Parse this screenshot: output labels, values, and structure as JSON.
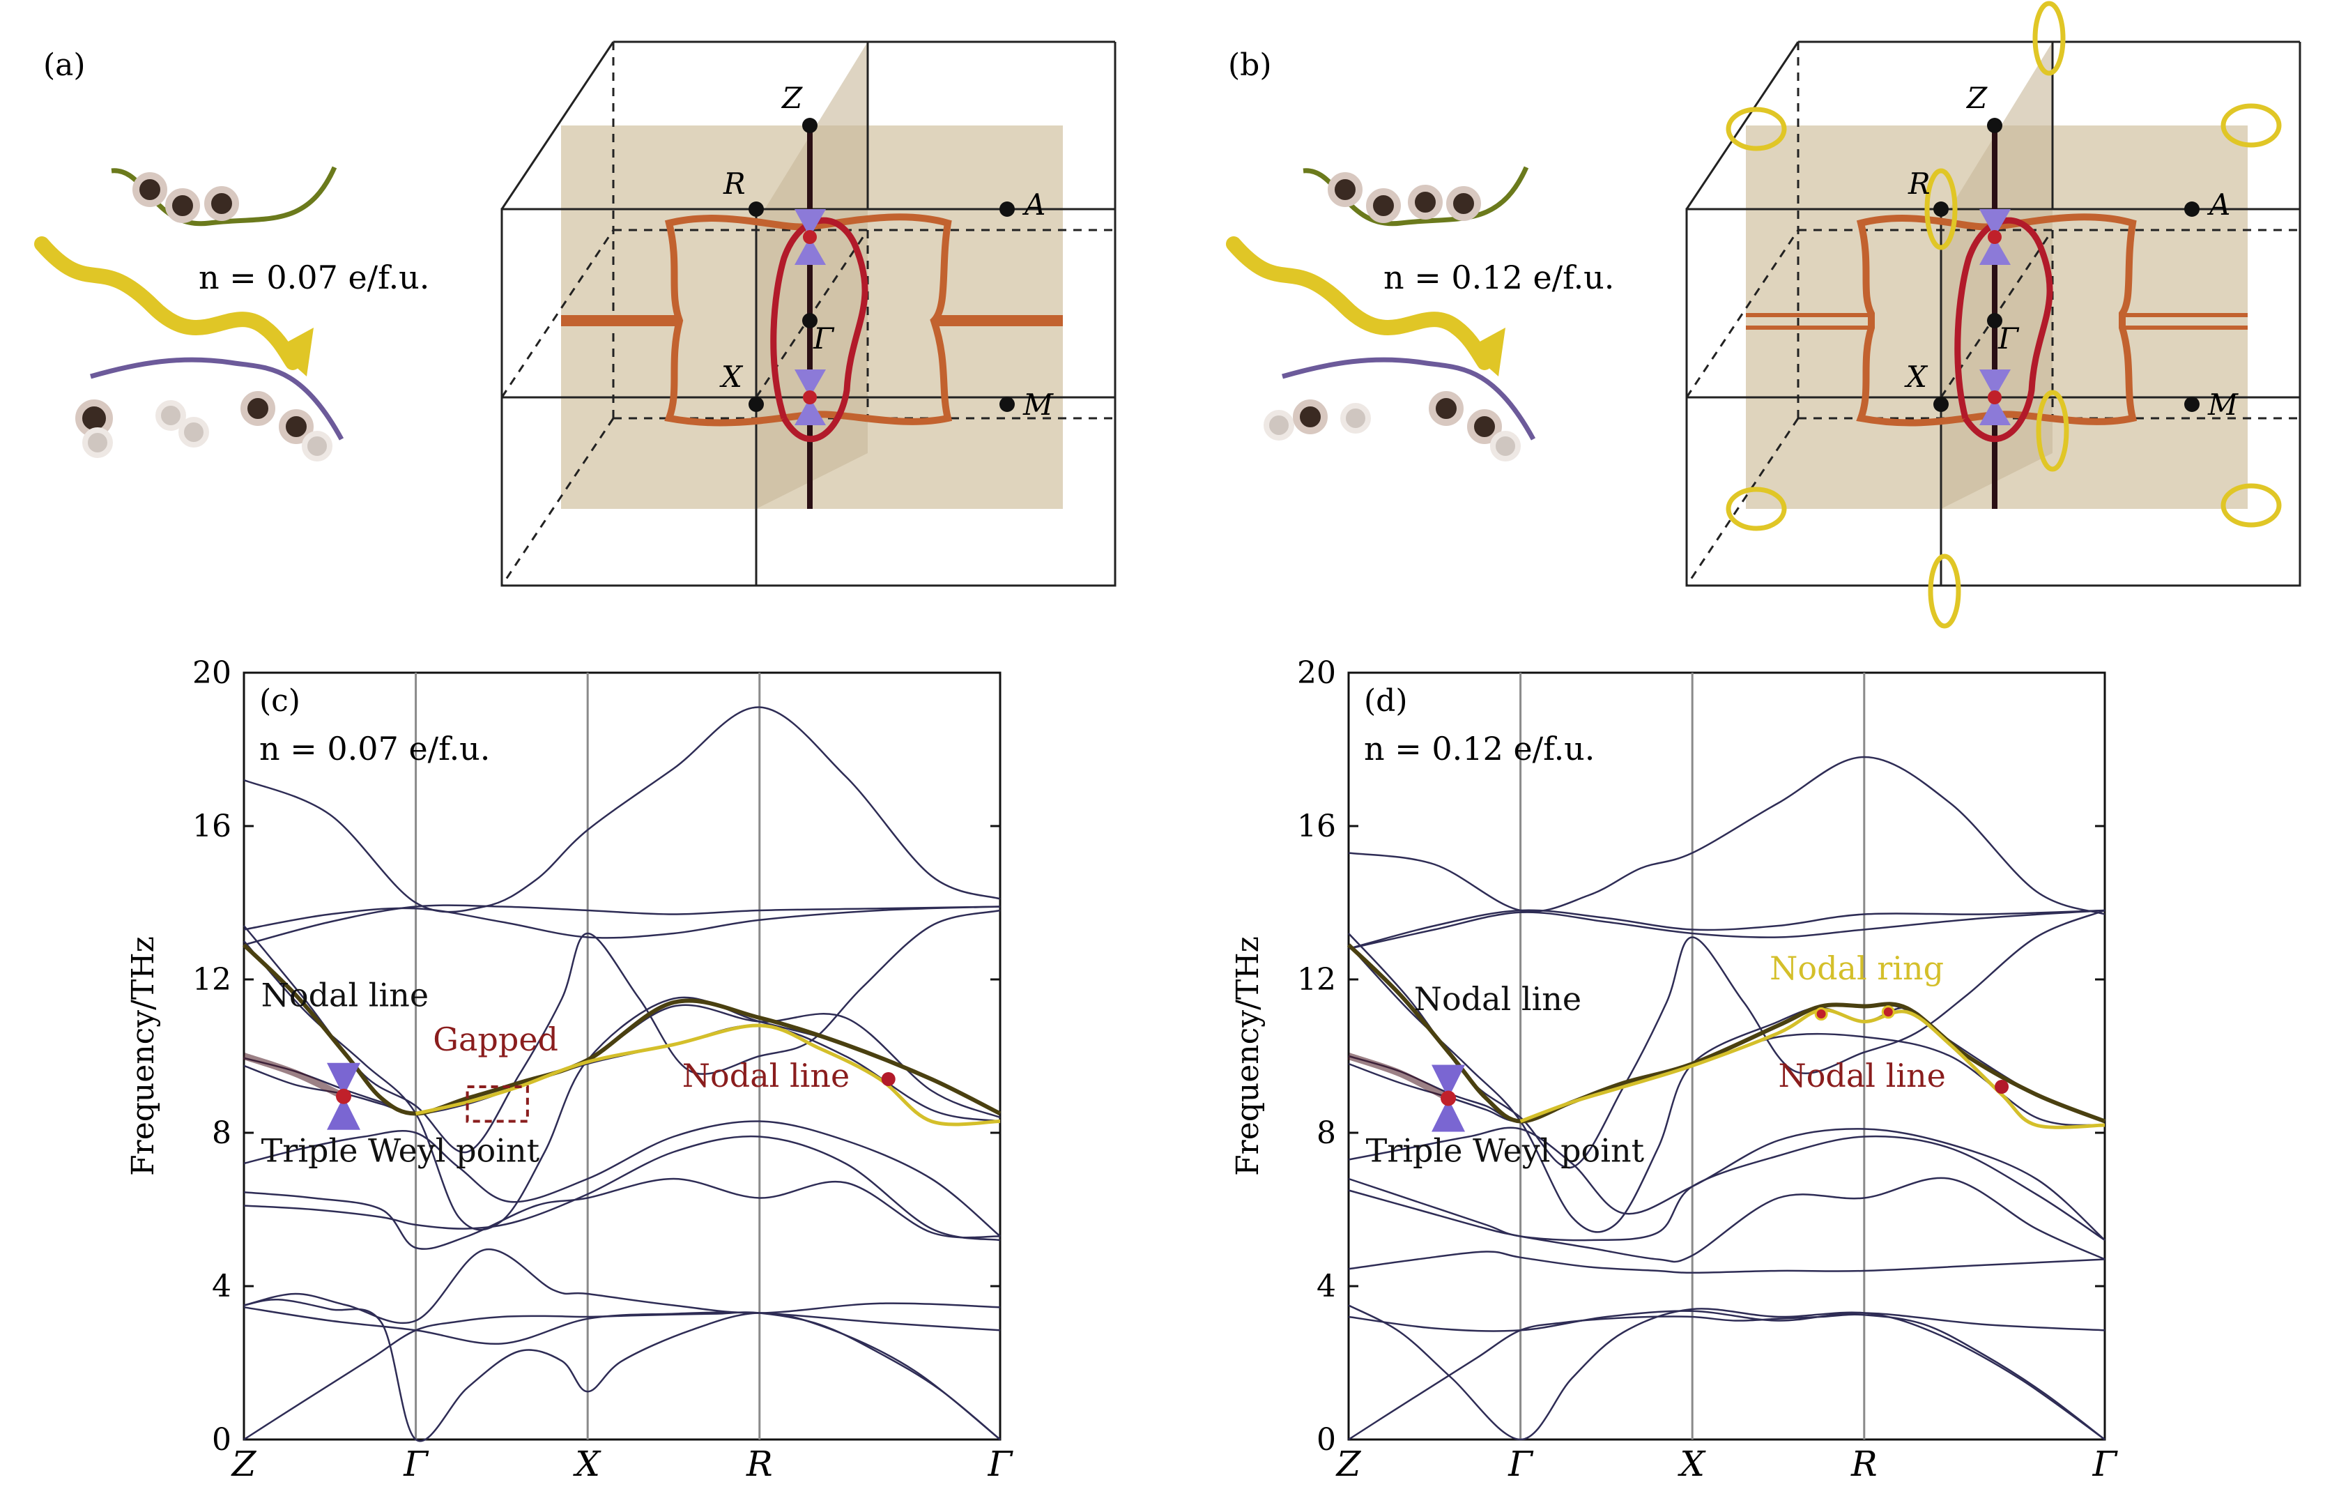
{
  "panels": {
    "a": {
      "label": "(a)",
      "doping": "n = 0.07 e/f.u."
    },
    "b": {
      "label": "(b)",
      "doping": "n = 0.12 e/f.u."
    }
  },
  "bz_labels": {
    "Z": "Z",
    "R": "R",
    "A": "A",
    "Gamma": "Γ",
    "X": "X",
    "M": "M"
  },
  "chart_data": [
    {
      "type": "line",
      "panel_label": "(c)",
      "doping_label": "n = 0.07 e/f.u.",
      "ylabel": "Frequency/THz",
      "xlabel": "",
      "ylim": [
        0,
        20
      ],
      "yticks": [
        0,
        4,
        8,
        12,
        16,
        20
      ],
      "x_ticks": [
        {
          "pos": 0,
          "label": "Z"
        },
        {
          "pos": 1,
          "label": "Γ"
        },
        {
          "pos": 2,
          "label": "X"
        },
        {
          "pos": 3,
          "label": "R"
        },
        {
          "pos": 4.4,
          "label": "Γ"
        }
      ],
      "annotations": {
        "nodal_line_left": "Nodal line",
        "gapped": "Gapped",
        "nodal_line_right": "Nodal line",
        "triple_weyl": "Triple Weyl point"
      },
      "series": [
        {
          "x": [
            0,
            0.25,
            0.5,
            0.75,
            1,
            1.25,
            1.5,
            1.75,
            2,
            2.25,
            2.5,
            2.75,
            3,
            3.35,
            3.7,
            4.05,
            4.4
          ],
          "y": [
            0,
            0.72,
            1.43,
            2.14,
            2.85,
            3.08,
            3.2,
            3.22,
            3.2,
            3.23,
            3.26,
            3.28,
            3.3,
            3.0,
            2.25,
            1.3,
            0
          ]
        },
        {
          "x": [
            0,
            0.5,
            1,
            1.5,
            2,
            2.5,
            3,
            3.7,
            4.4
          ],
          "y": [
            3.45,
            3.1,
            2.85,
            2.5,
            3.15,
            3.28,
            3.3,
            3.05,
            2.85
          ]
        },
        {
          "x": [
            0,
            0.2,
            0.5,
            0.8,
            1,
            1.3,
            1.6,
            1.85,
            2,
            2.2,
            2.6,
            3,
            3.4,
            3.9,
            4.4
          ],
          "y": [
            3.5,
            3.65,
            3.4,
            3.05,
            0,
            1.35,
            2.3,
            2.05,
            1.25,
            2.05,
            2.85,
            3.3,
            2.9,
            1.8,
            0
          ]
        },
        {
          "x": [
            0,
            0.3,
            0.6,
            1,
            1.4,
            1.8,
            2,
            2.5,
            3,
            3.7,
            4.4
          ],
          "y": [
            3.5,
            3.8,
            3.5,
            3.1,
            4.95,
            3.9,
            3.8,
            3.5,
            3.3,
            3.55,
            3.45
          ]
        },
        {
          "x": [
            0,
            0.4,
            0.8,
            1,
            1.3,
            1.6,
            2,
            2.5,
            3,
            3.5,
            4.0,
            4.4
          ],
          "y": [
            6.1,
            6.0,
            5.8,
            5.6,
            5.5,
            5.7,
            6.4,
            7.5,
            7.9,
            7.2,
            5.5,
            5.2
          ]
        },
        {
          "x": [
            0,
            0.4,
            0.8,
            1,
            1.3,
            1.7,
            2,
            2.5,
            3,
            3.5,
            4.0,
            4.4
          ],
          "y": [
            6.45,
            6.3,
            6.0,
            5.0,
            5.3,
            6.1,
            6.3,
            6.8,
            6.3,
            6.7,
            5.4,
            5.3
          ]
        },
        {
          "x": [
            0,
            0.35,
            0.7,
            1,
            1.25,
            1.55,
            2,
            2.5,
            3,
            3.5,
            4.0,
            4.4
          ],
          "y": [
            7.2,
            7.6,
            7.9,
            8.0,
            7.1,
            6.2,
            6.8,
            7.9,
            8.3,
            7.8,
            6.8,
            5.3
          ]
        },
        {
          "x": [
            0,
            0.3,
            0.6,
            0.8,
            1,
            1.3,
            1.6,
            2,
            2.5,
            3,
            3.5,
            4.0,
            4.4
          ],
          "y": [
            9.75,
            9.25,
            9.0,
            8.75,
            8.5,
            8.75,
            9.2,
            9.8,
            10.3,
            10.8,
            10.0,
            8.6,
            8.3
          ]
        },
        {
          "x": [
            0,
            0.3,
            0.6,
            0.8,
            1,
            1.3,
            1.6,
            2,
            2.5,
            3,
            3.5,
            4.0,
            4.4
          ],
          "y": [
            9.95,
            9.6,
            9.1,
            8.8,
            8.5,
            8.9,
            9.3,
            9.9,
            11.3,
            10.9,
            11.0,
            9.1,
            8.4
          ]
        },
        {
          "x": [
            0,
            0.35,
            0.7,
            1,
            1.25,
            1.5,
            1.75,
            2,
            2.5,
            3,
            3.5,
            4.0,
            4.4
          ],
          "y": [
            13.0,
            11.2,
            9.8,
            8.5,
            5.8,
            5.7,
            7.5,
            9.9,
            11.5,
            10.9,
            10.3,
            9.4,
            8.5
          ]
        },
        {
          "x": [
            0,
            0.35,
            0.7,
            1,
            1.3,
            1.6,
            1.85,
            2,
            2.3,
            2.6,
            3,
            3.3,
            3.6,
            4.0,
            4.4
          ],
          "y": [
            13.4,
            11.5,
            9.5,
            8.7,
            7.5,
            9.5,
            11.5,
            13.2,
            11.5,
            9.6,
            10.0,
            10.4,
            11.8,
            13.4,
            13.8
          ]
        },
        {
          "x": [
            0,
            0.5,
            1,
            1.5,
            2,
            2.5,
            3,
            3.7,
            4.4
          ],
          "y": [
            13.3,
            13.7,
            13.85,
            13.5,
            13.1,
            13.2,
            13.55,
            13.8,
            13.9
          ]
        },
        {
          "x": [
            0,
            0.5,
            1,
            1.5,
            2,
            2.5,
            3,
            3.7,
            4.4
          ],
          "y": [
            12.9,
            13.5,
            13.9,
            13.9,
            13.8,
            13.7,
            13.8,
            13.85,
            13.9
          ]
        },
        {
          "x": [
            0,
            0.5,
            1,
            1.4,
            1.7,
            2,
            2.5,
            3,
            3.5,
            4.0,
            4.4
          ],
          "y": [
            17.2,
            16.3,
            14.0,
            13.9,
            14.6,
            15.9,
            17.5,
            19.1,
            17.3,
            14.7,
            14.1
          ]
        }
      ],
      "highlight": {
        "dark_nodal_line": {
          "x": [
            0,
            0.3,
            0.6,
            0.8,
            1,
            1.3,
            1.6,
            2,
            2.5,
            3,
            3.5,
            4.0,
            4.4
          ],
          "y": [
            12.9,
            11.6,
            10.0,
            8.9,
            8.5,
            8.9,
            9.3,
            9.9,
            11.4,
            11.0,
            10.3,
            9.4,
            8.5
          ]
        },
        "yellow_line": {
          "x": [
            1,
            1.3,
            1.6,
            2,
            2.5,
            3,
            3.35,
            3.7,
            4.0,
            4.4
          ],
          "y": [
            8.5,
            8.8,
            9.2,
            9.85,
            10.3,
            10.8,
            10.2,
            9.4,
            8.3,
            8.3
          ]
        },
        "triple_weyl_point": {
          "x": 0.58,
          "y": 8.95
        },
        "nodal_point": {
          "x": 3.75,
          "y": 9.4
        },
        "gapped_box": {
          "x": [
            1.3,
            1.65
          ],
          "y": [
            8.3,
            9.2
          ]
        }
      }
    },
    {
      "type": "line",
      "panel_label": "(d)",
      "doping_label": "n = 0.12 e/f.u.",
      "ylabel": "Frequency/THz",
      "xlabel": "",
      "ylim": [
        0,
        20
      ],
      "yticks": [
        0,
        4,
        8,
        12,
        16,
        20
      ],
      "x_ticks": [
        {
          "pos": 0,
          "label": "Z"
        },
        {
          "pos": 1,
          "label": "Γ"
        },
        {
          "pos": 2,
          "label": "X"
        },
        {
          "pos": 3,
          "label": "R"
        },
        {
          "pos": 4.4,
          "label": "Γ"
        }
      ],
      "annotations": {
        "nodal_ring": "Nodal ring",
        "nodal_line_left": "Nodal line",
        "nodal_line_right": "Nodal line",
        "triple_weyl": "Triple Weyl point"
      },
      "series": [
        {
          "x": [
            0,
            0.25,
            0.5,
            0.75,
            1,
            1.25,
            1.5,
            1.75,
            2,
            2.25,
            2.5,
            2.75,
            3,
            3.35,
            3.7,
            4.05,
            4.4
          ],
          "y": [
            0,
            0.72,
            1.43,
            2.14,
            2.85,
            3.05,
            3.15,
            3.2,
            3.2,
            3.1,
            3.15,
            3.2,
            3.25,
            3.0,
            2.2,
            1.2,
            0
          ]
        },
        {
          "x": [
            0,
            0.5,
            1,
            1.5,
            2,
            2.5,
            3,
            3.7,
            4.4
          ],
          "y": [
            3.2,
            2.9,
            2.85,
            3.2,
            3.35,
            3.1,
            3.3,
            3.0,
            2.85
          ]
        },
        {
          "x": [
            0,
            0.3,
            0.6,
            1,
            1.3,
            1.6,
            2,
            2.5,
            3,
            3.4,
            3.9,
            4.4
          ],
          "y": [
            3.5,
            2.8,
            1.6,
            0,
            1.6,
            2.8,
            3.4,
            3.2,
            3.3,
            2.8,
            1.6,
            0
          ]
        },
        {
          "x": [
            0,
            0.4,
            0.8,
            1,
            1.4,
            1.8,
            2,
            2.5,
            3,
            3.7,
            4.4
          ],
          "y": [
            4.45,
            4.7,
            4.9,
            4.75,
            4.5,
            4.4,
            4.35,
            4.4,
            4.4,
            4.55,
            4.7
          ]
        },
        {
          "x": [
            0,
            0.4,
            0.8,
            1,
            1.4,
            1.8,
            2,
            2.5,
            3,
            3.5,
            4.0,
            4.4
          ],
          "y": [
            6.5,
            6.0,
            5.5,
            5.3,
            5.0,
            4.7,
            4.8,
            6.3,
            6.3,
            6.8,
            5.5,
            4.7
          ]
        },
        {
          "x": [
            0,
            0.4,
            0.8,
            1,
            1.4,
            1.8,
            2,
            2.5,
            3,
            3.5,
            4.0,
            4.4
          ],
          "y": [
            6.8,
            6.2,
            5.6,
            5.3,
            5.2,
            5.4,
            6.6,
            7.4,
            7.9,
            7.6,
            6.4,
            5.2
          ]
        },
        {
          "x": [
            0,
            0.35,
            0.7,
            1,
            1.3,
            1.6,
            2,
            2.5,
            3,
            3.5,
            4.0,
            4.4
          ],
          "y": [
            7.3,
            7.6,
            7.9,
            8.1,
            7.2,
            5.9,
            6.6,
            7.8,
            8.1,
            7.7,
            6.8,
            5.2
          ]
        },
        {
          "x": [
            0,
            0.3,
            0.6,
            0.8,
            1,
            1.3,
            1.6,
            2,
            2.5,
            3,
            3.5,
            4.0,
            4.4
          ],
          "y": [
            9.8,
            9.3,
            8.9,
            8.6,
            8.3,
            8.8,
            9.2,
            9.75,
            10.5,
            10.5,
            10.0,
            8.4,
            8.2
          ]
        },
        {
          "x": [
            0,
            0.3,
            0.6,
            0.8,
            1,
            1.3,
            1.6,
            2,
            2.5,
            2.75,
            3,
            3.25,
            3.5,
            4.0,
            4.4
          ],
          "y": [
            10.0,
            9.6,
            9.0,
            8.7,
            8.3,
            8.8,
            9.3,
            9.8,
            10.8,
            11.25,
            10.9,
            11.25,
            10.4,
            9.0,
            8.3
          ]
        },
        {
          "x": [
            0,
            0.35,
            0.7,
            1,
            1.3,
            1.55,
            1.8,
            2,
            2.5,
            2.75,
            3,
            3.25,
            3.6,
            4.0,
            4.4
          ],
          "y": [
            12.9,
            11.2,
            9.7,
            8.3,
            5.8,
            5.6,
            7.6,
            9.8,
            10.9,
            11.3,
            11.3,
            11.2,
            10.0,
            9.0,
            8.3
          ]
        },
        {
          "x": [
            0,
            0.35,
            0.7,
            1,
            1.3,
            1.6,
            1.85,
            2,
            2.3,
            2.6,
            3,
            3.3,
            3.6,
            4.0,
            4.4
          ],
          "y": [
            13.2,
            11.5,
            9.4,
            8.4,
            7.1,
            9.2,
            11.4,
            13.1,
            11.4,
            9.6,
            10.1,
            10.6,
            11.6,
            13.1,
            13.8
          ]
        },
        {
          "x": [
            0,
            0.5,
            1,
            1.5,
            2,
            2.5,
            3,
            3.7,
            4.4
          ],
          "y": [
            12.8,
            13.3,
            13.75,
            13.5,
            13.2,
            13.1,
            13.3,
            13.6,
            13.8
          ]
        },
        {
          "x": [
            0,
            0.5,
            1,
            1.5,
            2,
            2.5,
            3,
            3.7,
            4.4
          ],
          "y": [
            12.8,
            13.4,
            13.8,
            13.6,
            13.3,
            13.4,
            13.7,
            13.7,
            13.8
          ]
        },
        {
          "x": [
            0,
            0.5,
            1,
            1.4,
            1.7,
            2,
            2.5,
            3,
            3.5,
            4.0,
            4.4
          ],
          "y": [
            15.3,
            15.0,
            13.8,
            14.2,
            14.9,
            15.3,
            16.6,
            17.8,
            16.6,
            14.3,
            13.7
          ]
        }
      ],
      "highlight": {
        "dark_nodal_line": {
          "x": [
            0,
            0.3,
            0.6,
            0.8,
            1,
            1.3,
            1.6,
            2,
            2.5,
            2.75,
            3,
            3.25,
            3.6,
            4.0,
            4.4
          ],
          "y": [
            12.9,
            11.6,
            10.0,
            8.9,
            8.3,
            8.8,
            9.3,
            9.8,
            10.8,
            11.3,
            11.3,
            11.25,
            10.0,
            9.0,
            8.3
          ]
        },
        "yellow_line": {
          "x": [
            1,
            1.3,
            1.6,
            2,
            2.5,
            2.75,
            3,
            3.25,
            3.5,
            3.8,
            4.0,
            4.4
          ],
          "y": [
            8.3,
            8.8,
            9.2,
            9.75,
            10.6,
            11.2,
            10.9,
            11.15,
            10.3,
            9.0,
            8.2,
            8.2
          ]
        },
        "triple_weyl_point": {
          "x": 0.58,
          "y": 8.9
        },
        "nodal_point": {
          "x": 3.8,
          "y": 9.2
        },
        "ring_points": [
          {
            "x": 2.75,
            "y": 11.1
          },
          {
            "x": 3.14,
            "y": 11.15
          }
        ]
      }
    }
  ]
}
